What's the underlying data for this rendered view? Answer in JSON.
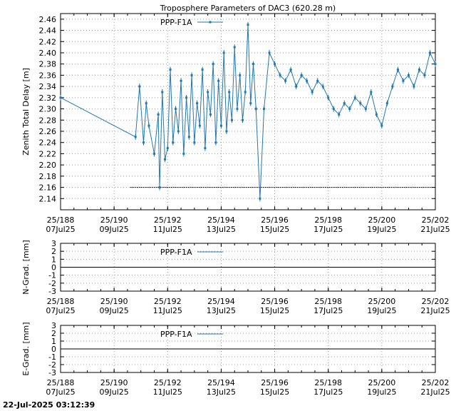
{
  "timestamp": "22-Jul-2025 03:12:39",
  "chart_data": [
    {
      "type": "line",
      "title": "Troposphere Parameters of DAC3 (620.28 m)",
      "ylabel": "Zenith Total Delay [m]",
      "xlabel": "",
      "ylim": [
        2.12,
        2.47
      ],
      "yticks": [
        "2.14",
        "2.16",
        "2.18",
        "2.20",
        "2.22",
        "2.24",
        "2.26",
        "2.28",
        "2.30",
        "2.32",
        "2.34",
        "2.36",
        "2.38",
        "2.40",
        "2.42",
        "2.44",
        "2.46"
      ],
      "xlim": [
        188,
        202
      ],
      "xticks": [
        {
          "doy": "25/188",
          "date": "07Jul25"
        },
        {
          "doy": "25/190",
          "date": "09Jul25"
        },
        {
          "doy": "25/192",
          "date": "11Jul25"
        },
        {
          "doy": "25/194",
          "date": "13Jul25"
        },
        {
          "doy": "25/196",
          "date": "15Jul25"
        },
        {
          "doy": "25/198",
          "date": "17Jul25"
        },
        {
          "doy": "25/200",
          "date": "19Jul25"
        },
        {
          "doy": "25/202",
          "date": "21Jul25"
        }
      ],
      "grid": true,
      "legend_position": "top-left",
      "series": [
        {
          "name": "PPP-F1A",
          "color": "#1f77b4",
          "x": [
            188.0,
            190.8,
            190.95,
            191.1,
            191.2,
            191.3,
            191.5,
            191.65,
            191.7,
            191.8,
            191.9,
            192.0,
            192.1,
            192.2,
            192.3,
            192.4,
            192.5,
            192.6,
            192.7,
            192.8,
            192.9,
            193.0,
            193.1,
            193.2,
            193.3,
            193.4,
            193.5,
            193.6,
            193.7,
            193.8,
            193.9,
            194.0,
            194.1,
            194.2,
            194.3,
            194.4,
            194.5,
            194.6,
            194.7,
            194.8,
            194.9,
            195.0,
            195.1,
            195.2,
            195.3,
            195.45,
            195.6,
            195.8,
            196.0,
            196.2,
            196.4,
            196.6,
            196.8,
            197.0,
            197.2,
            197.4,
            197.6,
            197.8,
            198.0,
            198.2,
            198.4,
            198.6,
            198.8,
            199.0,
            199.2,
            199.4,
            199.6,
            199.8,
            200.0,
            200.2,
            200.4,
            200.6,
            200.8,
            201.0,
            201.2,
            201.4,
            201.6,
            201.8,
            202.0
          ],
          "values": [
            2.32,
            2.25,
            2.34,
            2.24,
            2.31,
            2.27,
            2.22,
            2.29,
            2.16,
            2.33,
            2.21,
            2.23,
            2.37,
            2.24,
            2.3,
            2.26,
            2.35,
            2.22,
            2.32,
            2.25,
            2.36,
            2.24,
            2.31,
            2.27,
            2.37,
            2.23,
            2.33,
            2.29,
            2.38,
            2.24,
            2.35,
            2.27,
            2.4,
            2.26,
            2.33,
            2.28,
            2.41,
            2.3,
            2.36,
            2.28,
            2.33,
            2.45,
            2.31,
            2.38,
            2.3,
            2.14,
            2.3,
            2.4,
            2.38,
            2.36,
            2.35,
            2.37,
            2.34,
            2.36,
            2.35,
            2.33,
            2.35,
            2.34,
            2.32,
            2.3,
            2.29,
            2.31,
            2.3,
            2.32,
            2.31,
            2.3,
            2.33,
            2.29,
            2.27,
            2.31,
            2.34,
            2.37,
            2.35,
            2.36,
            2.34,
            2.37,
            2.36,
            2.4,
            2.38
          ]
        }
      ]
    },
    {
      "type": "line",
      "ylabel": "N-Grad. [mm]",
      "ylim": [
        -3,
        3
      ],
      "yticks": [
        "3",
        "2",
        "1",
        "0",
        "-1",
        "-2",
        "-3"
      ],
      "xlim": [
        188,
        202
      ],
      "grid": true,
      "legend_position": "top-left",
      "series": [
        {
          "name": "PPP-F1A",
          "color": "#1f77b4",
          "values": [
            0,
            0
          ]
        }
      ]
    },
    {
      "type": "line",
      "ylabel": "E-Grad. [mm]",
      "ylim": [
        -3,
        3
      ],
      "yticks": [
        "3",
        "2",
        "1",
        "0",
        "-1",
        "-2",
        "-3"
      ],
      "xlim": [
        188,
        202
      ],
      "grid": true,
      "legend_position": "top-left",
      "series": [
        {
          "name": "PPP-F1A",
          "color": "#1f77b4",
          "values": [
            0,
            0
          ]
        }
      ]
    }
  ]
}
